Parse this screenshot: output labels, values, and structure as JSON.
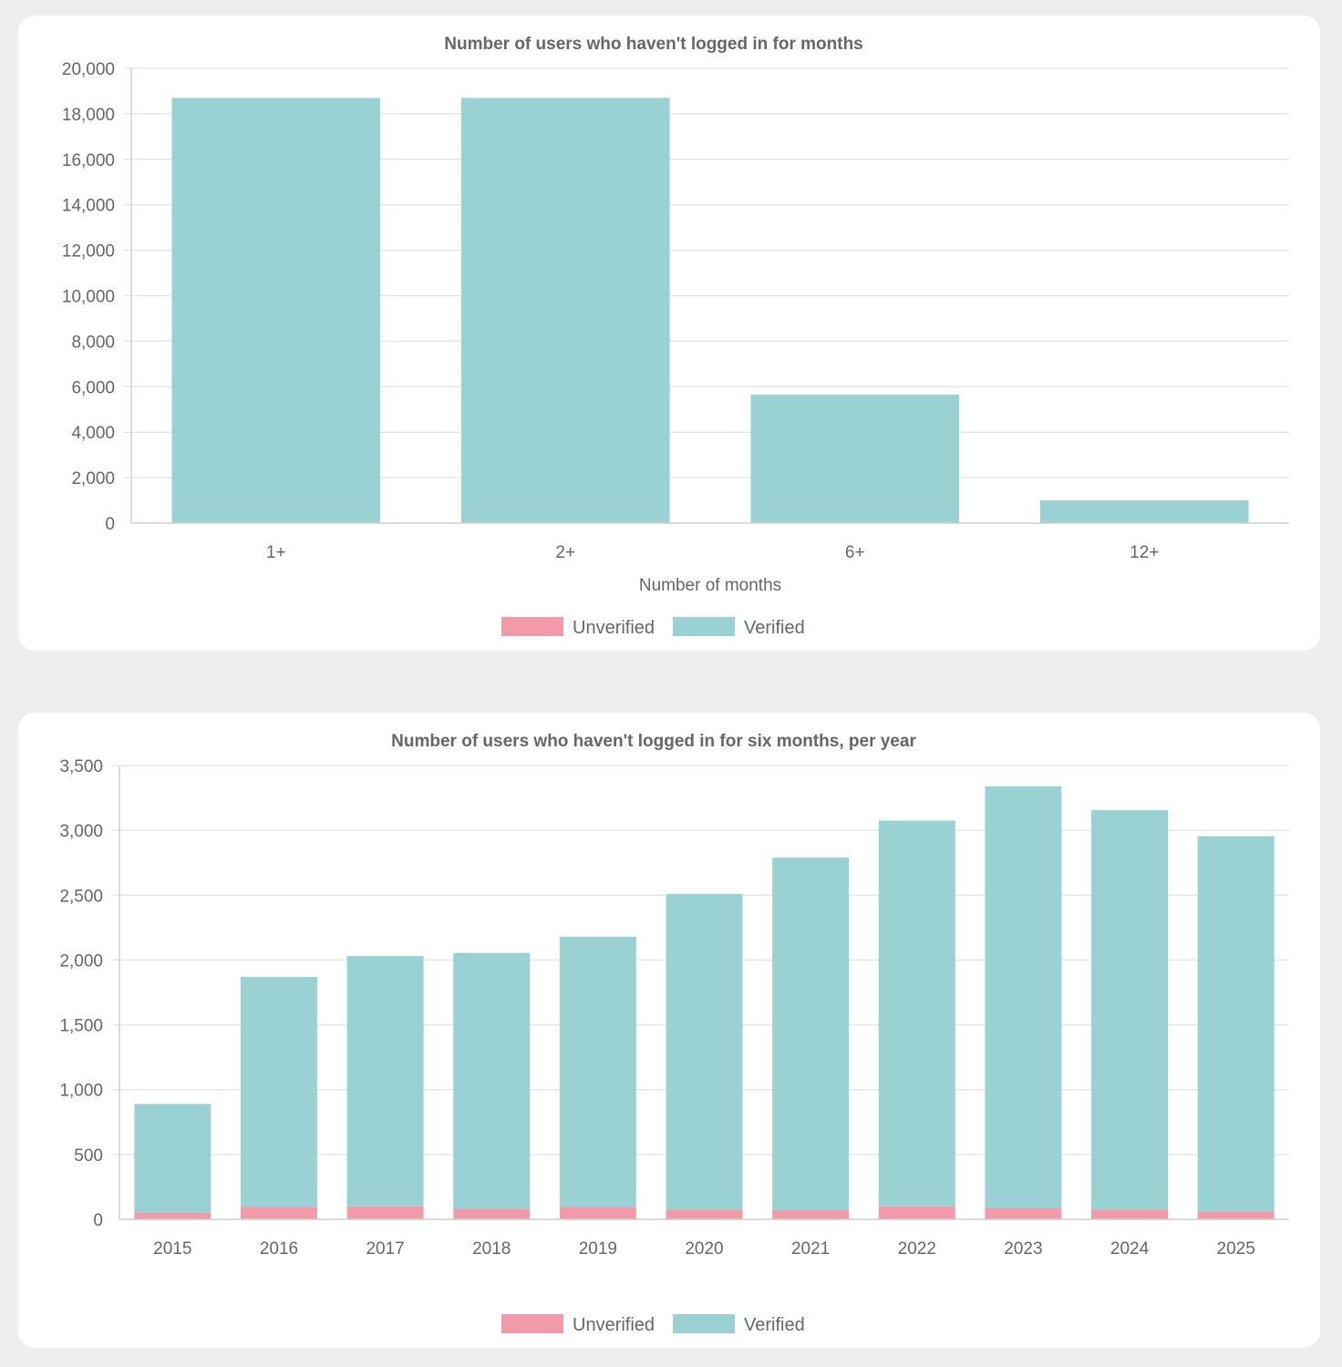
{
  "colors": {
    "unverified": "#f29aaa",
    "verified": "#9ad1d2",
    "text": "#666666",
    "page_background": "#eeeeee",
    "card_background": "#ffffff"
  },
  "chart_data": [
    {
      "type": "bar",
      "title": "Number of users who haven't logged in for months",
      "xlabel": "Number of months",
      "ylabel": "",
      "categories": [
        "1+",
        "2+",
        "6+",
        "12+"
      ],
      "series": [
        {
          "name": "Unverified",
          "values": [
            0,
            0,
            0,
            0
          ]
        },
        {
          "name": "Verified",
          "values": [
            18700,
            18700,
            5650,
            1000
          ]
        }
      ],
      "stacked": true,
      "ylim": [
        0,
        20000
      ],
      "yticks": [
        "0",
        "2,000",
        "4,000",
        "6,000",
        "8,000",
        "10,000",
        "12,000",
        "14,000",
        "16,000",
        "18,000",
        "20,000"
      ],
      "grid": true,
      "legend": "bottom"
    },
    {
      "type": "bar",
      "title": "Number of users who haven't logged in for six months, per year",
      "xlabel": "",
      "ylabel": "",
      "categories": [
        "2015",
        "2016",
        "2017",
        "2018",
        "2019",
        "2020",
        "2021",
        "2022",
        "2023",
        "2024",
        "2025"
      ],
      "series": [
        {
          "name": "Unverified",
          "values": [
            50,
            95,
            100,
            80,
            95,
            75,
            70,
            100,
            85,
            75,
            60
          ]
        },
        {
          "name": "Verified",
          "values": [
            840,
            1775,
            1930,
            1975,
            2085,
            2435,
            2720,
            2975,
            3255,
            3080,
            2895
          ]
        }
      ],
      "stacked": true,
      "ylim": [
        0,
        3500
      ],
      "yticks": [
        "0",
        "500",
        "1,000",
        "1,500",
        "2,000",
        "2,500",
        "3,000",
        "3,500"
      ],
      "grid": true,
      "legend": "bottom"
    }
  ]
}
